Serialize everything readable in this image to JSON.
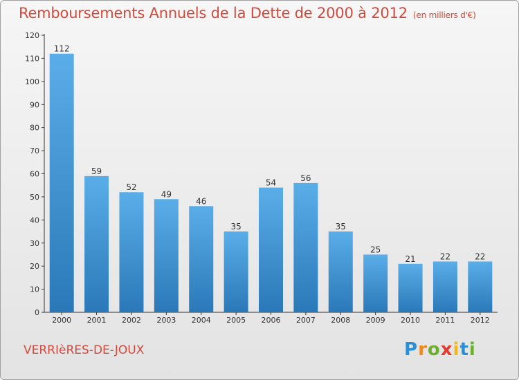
{
  "chart_data": {
    "type": "bar",
    "title": "Remboursements Annuels de la Dette de 2000 à 2012",
    "subtitle": "(en milliers d'€)",
    "xlabel": "",
    "ylabel": "",
    "categories": [
      "2000",
      "2001",
      "2002",
      "2003",
      "2004",
      "2005",
      "2006",
      "2007",
      "2008",
      "2009",
      "2010",
      "2011",
      "2012"
    ],
    "values": [
      112,
      59,
      52,
      49,
      46,
      35,
      54,
      56,
      35,
      25,
      21,
      22,
      22
    ],
    "ylim": [
      0,
      120
    ],
    "yticks": [
      0,
      10,
      20,
      30,
      40,
      50,
      60,
      70,
      80,
      90,
      100,
      110,
      120
    ],
    "grid": false,
    "legend": "none",
    "bar_color_top": "#5aaee8",
    "bar_color_bottom": "#2a78b8"
  },
  "commune": "VERRIèRES-DE-JOUX",
  "logo": {
    "letters": [
      "P",
      "r",
      "o",
      "x",
      "i",
      "t",
      "i"
    ],
    "colors": [
      "#2a8fd6",
      "#f08a1c",
      "#6ab02e",
      "#e23a2e",
      "#f0b81c",
      "#2a8fd6",
      "#6ab02e"
    ]
  },
  "colors": {
    "title": "#d24a3c",
    "axis": "#333333"
  }
}
